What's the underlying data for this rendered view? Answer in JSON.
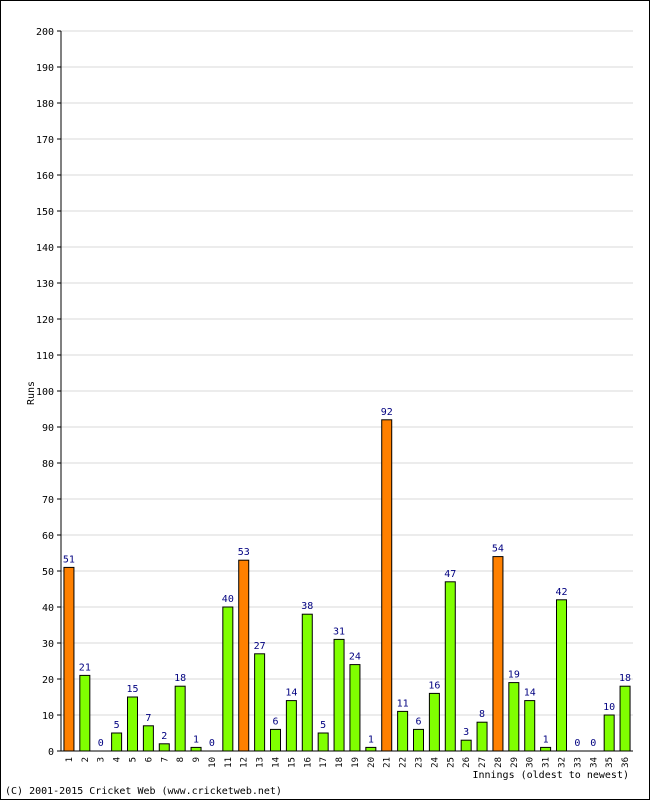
{
  "chart_data": {
    "type": "bar",
    "title": "",
    "xlabel": "Innings (oldest to newest)",
    "ylabel": "Runs",
    "ylim": [
      0,
      200
    ],
    "ytick_step": 10,
    "grid": true,
    "categories": [
      "1",
      "2",
      "3",
      "4",
      "5",
      "6",
      "7",
      "8",
      "9",
      "10",
      "11",
      "12",
      "13",
      "14",
      "15",
      "16",
      "17",
      "18",
      "19",
      "20",
      "21",
      "22",
      "23",
      "24",
      "25",
      "26",
      "27",
      "28",
      "29",
      "30",
      "31",
      "32",
      "33",
      "34",
      "35",
      "36"
    ],
    "values": [
      51,
      21,
      0,
      5,
      15,
      7,
      2,
      18,
      1,
      0,
      40,
      53,
      27,
      6,
      14,
      38,
      5,
      31,
      24,
      1,
      92,
      11,
      6,
      16,
      47,
      3,
      8,
      54,
      19,
      14,
      1,
      42,
      0,
      0,
      10,
      18
    ],
    "highlight_threshold": 50,
    "colors": {
      "bar_normal": "#80ff00",
      "bar_highlight": "#ff8000",
      "bar_outline": "#000000",
      "value_label": "#000080",
      "grid": "#d8d8d8",
      "axis": "#000000"
    }
  },
  "footer": {
    "copyright": "(C) 2001-2015 Cricket Web (www.cricketweb.net)"
  }
}
